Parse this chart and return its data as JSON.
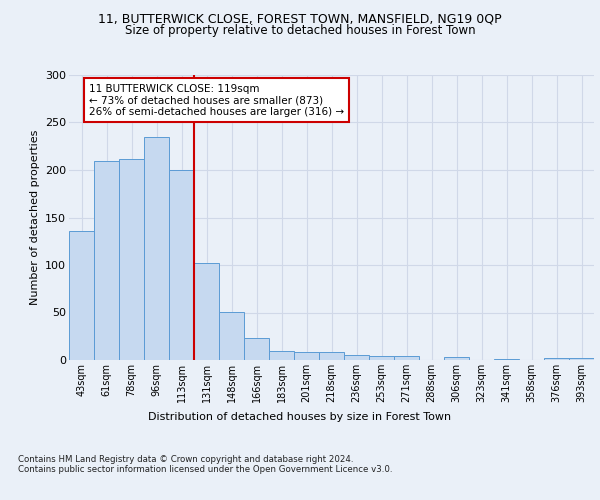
{
  "title_line1": "11, BUTTERWICK CLOSE, FOREST TOWN, MANSFIELD, NG19 0QP",
  "title_line2": "Size of property relative to detached houses in Forest Town",
  "xlabel": "Distribution of detached houses by size in Forest Town",
  "ylabel": "Number of detached properties",
  "categories": [
    "43sqm",
    "61sqm",
    "78sqm",
    "96sqm",
    "113sqm",
    "131sqm",
    "148sqm",
    "166sqm",
    "183sqm",
    "201sqm",
    "218sqm",
    "236sqm",
    "253sqm",
    "271sqm",
    "288sqm",
    "306sqm",
    "323sqm",
    "341sqm",
    "358sqm",
    "376sqm",
    "393sqm"
  ],
  "values": [
    136,
    210,
    212,
    235,
    200,
    102,
    51,
    23,
    10,
    8,
    8,
    5,
    4,
    4,
    0,
    3,
    0,
    1,
    0,
    2,
    2
  ],
  "bar_color": "#c6d9f0",
  "bar_edge_color": "#5b9bd5",
  "grid_color": "#d0d8e8",
  "background_color": "#eaf0f8",
  "vline_x": 4.5,
  "vline_color": "#cc0000",
  "annotation_text": "11 BUTTERWICK CLOSE: 119sqm\n← 73% of detached houses are smaller (873)\n26% of semi-detached houses are larger (316) →",
  "annotation_box_color": "#ffffff",
  "annotation_box_edge": "#cc0000",
  "footnote": "Contains HM Land Registry data © Crown copyright and database right 2024.\nContains public sector information licensed under the Open Government Licence v3.0.",
  "ylim": [
    0,
    300
  ],
  "yticks": [
    0,
    50,
    100,
    150,
    200,
    250,
    300
  ]
}
